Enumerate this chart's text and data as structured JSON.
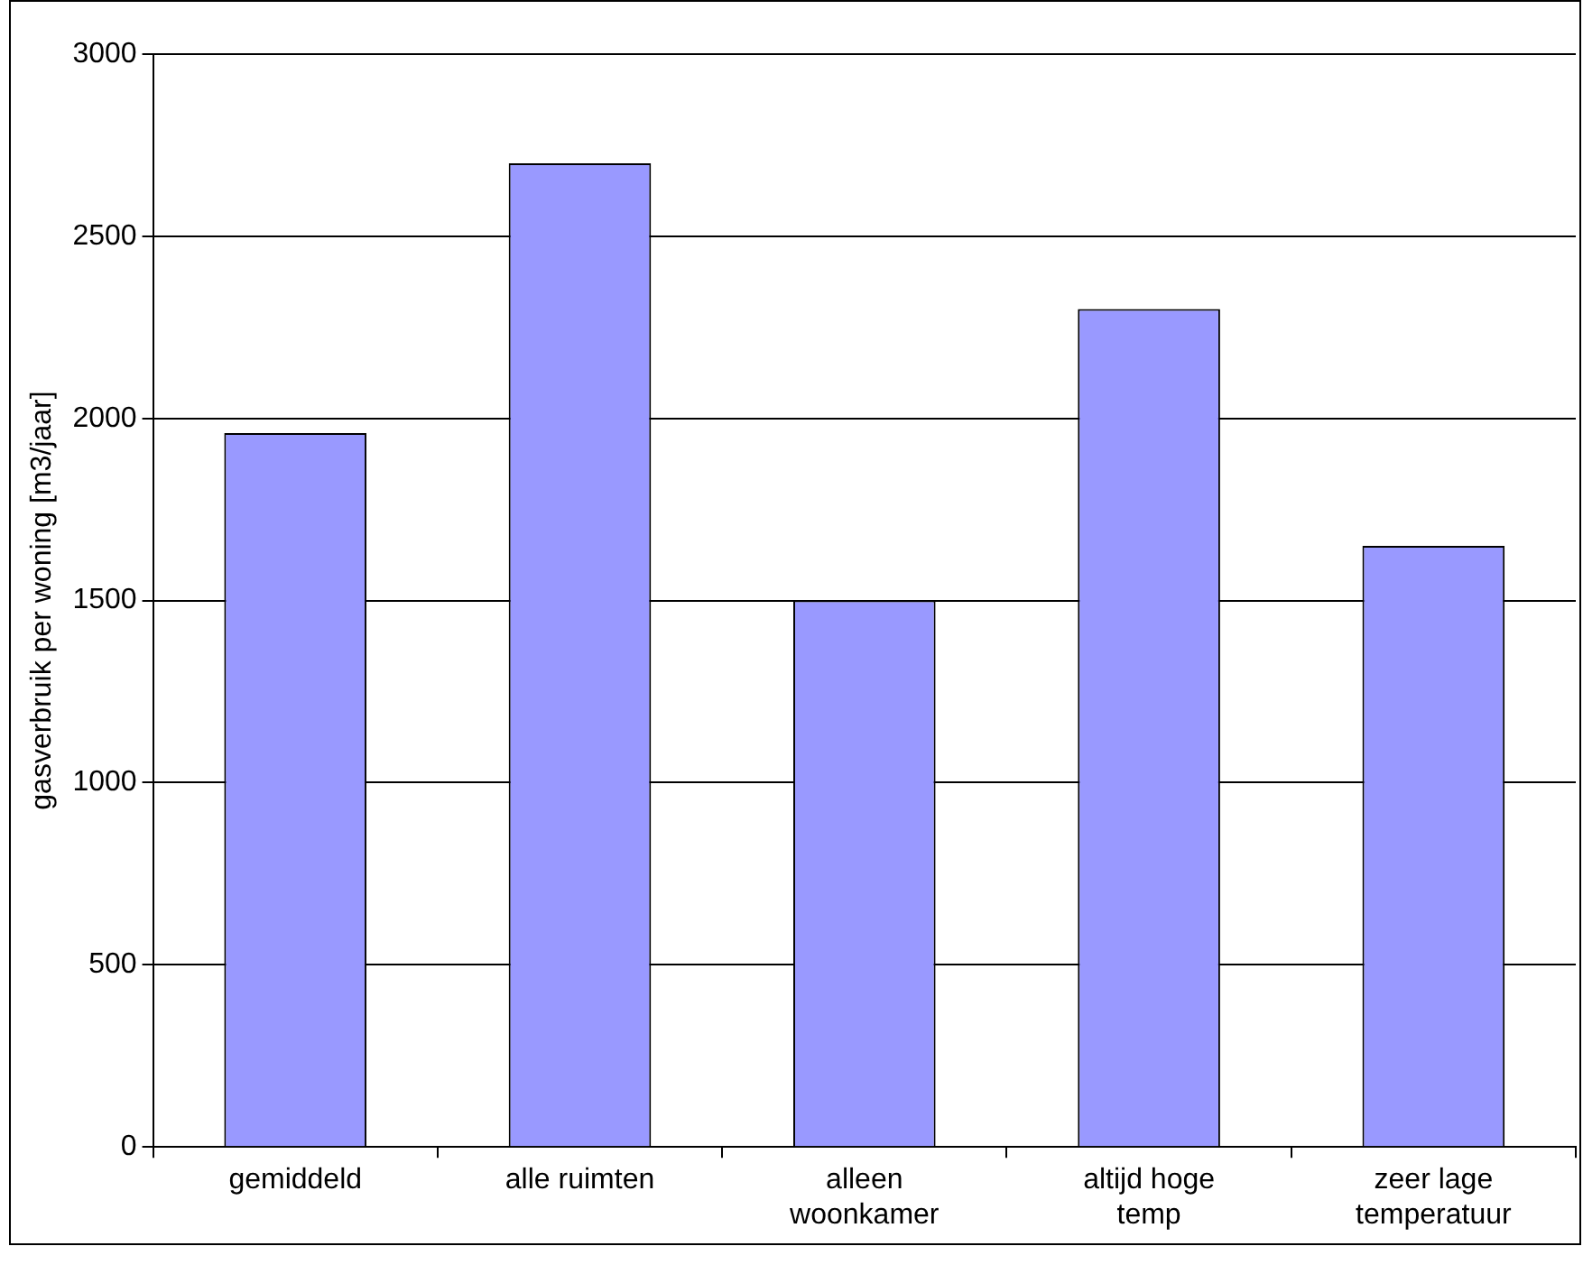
{
  "chart_data": {
    "type": "bar",
    "ylabel": "gasverbruik per woning [m3/jaar]",
    "categories": [
      "gemiddeld",
      "alle ruimten",
      "alleen woonkamer",
      "altijd hoge temp",
      "zeer lage temperatuur"
    ],
    "values": [
      1960,
      2700,
      1500,
      2300,
      1650
    ],
    "color": "#9999ff",
    "ylim": [
      0,
      3000
    ],
    "yticks": [
      0,
      500,
      1000,
      1500,
      2000,
      2500,
      3000
    ],
    "grid": "y",
    "legend": false
  }
}
